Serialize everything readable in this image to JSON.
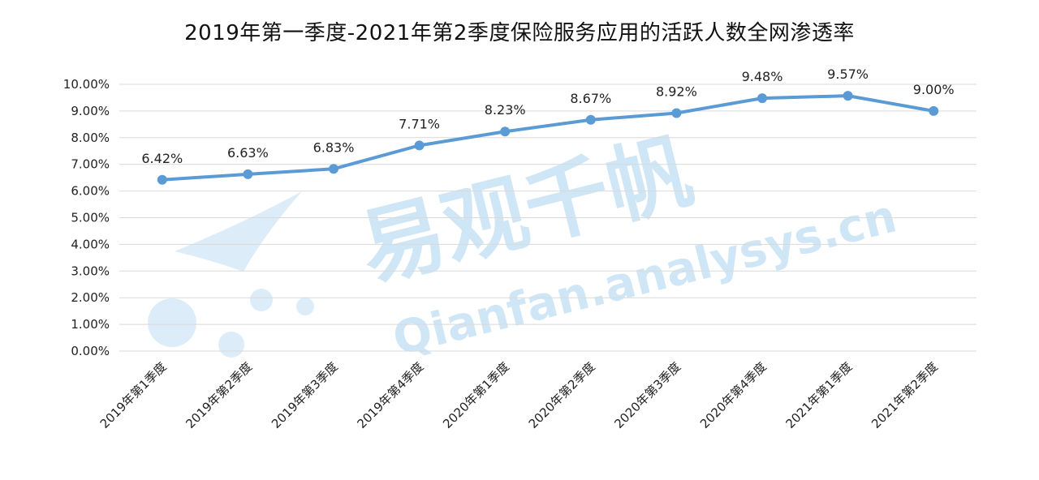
{
  "chart_data": {
    "type": "line",
    "title": "2019年第一季度-2021年第2季度保险服务应用的活跃人数全网渗透率",
    "xlabel": "",
    "ylabel": "",
    "categories": [
      "2019年第1季度",
      "2019年第2季度",
      "2019年第3季度",
      "2019年第4季度",
      "2020年第1季度",
      "2020年第2季度",
      "2020年第3季度",
      "2020年第4季度",
      "2021年第1季度",
      "2021年第2季度"
    ],
    "series": [
      {
        "values": [
          6.42,
          6.63,
          6.83,
          7.71,
          8.23,
          8.67,
          8.92,
          9.48,
          9.57,
          9.0
        ],
        "labels": [
          "6.42%",
          "6.63%",
          "6.83%",
          "7.71%",
          "8.23%",
          "8.67%",
          "8.92%",
          "9.48%",
          "9.57%",
          "9.00%"
        ]
      }
    ],
    "ylim": [
      0,
      10
    ],
    "yticks": [
      "0.00%",
      "1.00%",
      "2.00%",
      "3.00%",
      "4.00%",
      "5.00%",
      "6.00%",
      "7.00%",
      "8.00%",
      "9.00%",
      "10.00%"
    ],
    "grid": true,
    "legend": "none",
    "line_color": "#5b9bd5"
  },
  "watermark": {
    "cn": "易观千帆",
    "en": "Qianfan.analysys.cn"
  }
}
